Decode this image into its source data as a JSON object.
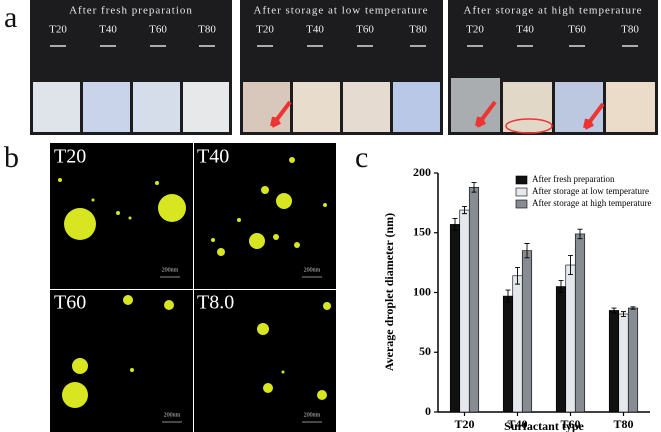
{
  "panel_a": {
    "label": "a",
    "photos": [
      {
        "title": "After fresh preparation",
        "samples": [
          "T20",
          "T40",
          "T60",
          "T80"
        ]
      },
      {
        "title": "After storage at low temperature",
        "samples": [
          "T20",
          "T40",
          "T60",
          "T80"
        ]
      },
      {
        "title": "After storage at high temperature",
        "samples": [
          "T20",
          "T40",
          "T60",
          "T80"
        ]
      }
    ]
  },
  "panel_b": {
    "label": "b",
    "images": [
      {
        "label": "T20",
        "scale_bar": "200nm"
      },
      {
        "label": "T40",
        "scale_bar": "200nm"
      },
      {
        "label": "T60",
        "scale_bar": "200nm"
      },
      {
        "label": "T8.0",
        "scale_bar": "200nm"
      }
    ]
  },
  "panel_c": {
    "label": "c"
  },
  "chart_data": {
    "type": "bar",
    "y_label": "Average droplet diameter (nm)",
    "x_label": "Surfactant type",
    "categories": [
      "T20",
      "T40",
      "T60",
      "T80"
    ],
    "series": [
      {
        "name": "After fresh preparation",
        "color": "#111111",
        "values": [
          157,
          97,
          105,
          85
        ],
        "errors": [
          5,
          5,
          5,
          2
        ]
      },
      {
        "name": "After storage at low temperature",
        "color": "#e4e8ec",
        "values": [
          169,
          114,
          123,
          82
        ],
        "errors": [
          3,
          7,
          8,
          2
        ]
      },
      {
        "name": "After storage at high temperature",
        "color": "#868c92",
        "values": [
          188,
          135,
          149,
          87
        ],
        "errors": [
          4,
          6,
          4,
          1
        ]
      }
    ],
    "ylim": [
      0,
      200
    ],
    "yticks": [
      0,
      50,
      100,
      150,
      200
    ],
    "legend": "upper right"
  }
}
